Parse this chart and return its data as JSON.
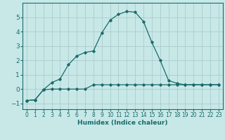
{
  "xlabel": "Humidex (Indice chaleur)",
  "bg_color": "#c8e8e8",
  "grid_color": "#aacccc",
  "line_color": "#1a6b6b",
  "xlim": [
    -0.5,
    23.5
  ],
  "ylim": [
    -1.4,
    6.0
  ],
  "xticks": [
    0,
    1,
    2,
    3,
    4,
    5,
    6,
    7,
    8,
    9,
    10,
    11,
    12,
    13,
    14,
    15,
    16,
    17,
    18,
    19,
    20,
    21,
    22,
    23
  ],
  "yticks": [
    -1,
    0,
    1,
    2,
    3,
    4,
    5
  ],
  "curve1_x": [
    0,
    1,
    2,
    3,
    4,
    5,
    6,
    7,
    8,
    9,
    10,
    11,
    12,
    13,
    14,
    15,
    16,
    17,
    18,
    19,
    20,
    21,
    22,
    23
  ],
  "curve1_y": [
    -0.8,
    -0.75,
    -0.05,
    0.45,
    0.7,
    1.7,
    2.3,
    2.55,
    2.65,
    3.9,
    4.8,
    5.2,
    5.4,
    5.35,
    4.7,
    3.25,
    2.0,
    0.6,
    0.4,
    0.3,
    0.3,
    0.3,
    0.3,
    0.3
  ],
  "curve2_x": [
    0,
    1,
    2,
    3,
    4,
    5,
    6,
    7,
    8,
    9,
    10,
    11,
    12,
    13,
    14,
    15,
    16,
    17,
    18,
    19,
    20,
    21,
    22,
    23
  ],
  "curve2_y": [
    -0.8,
    -0.75,
    -0.05,
    0.0,
    0.0,
    0.0,
    0.0,
    0.0,
    0.3,
    0.3,
    0.3,
    0.3,
    0.3,
    0.3,
    0.3,
    0.3,
    0.3,
    0.3,
    0.3,
    0.3,
    0.3,
    0.3,
    0.3,
    0.3
  ]
}
